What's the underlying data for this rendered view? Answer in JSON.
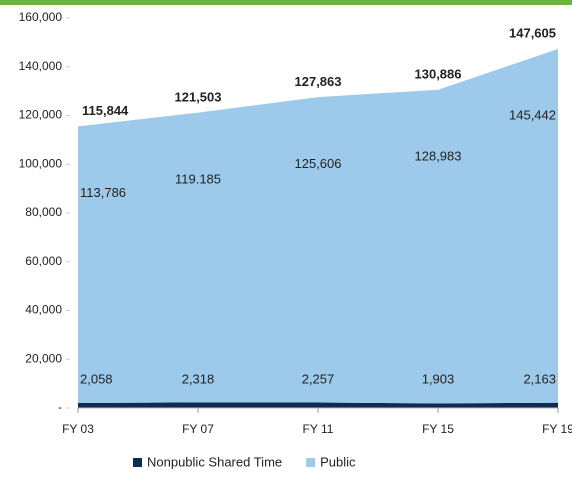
{
  "chart_data": {
    "type": "stacked_area",
    "categories": [
      "FY 03",
      "FY 07",
      "FY 11",
      "FY 15",
      "FY 19"
    ],
    "series": [
      {
        "name": "Nonpublic Shared Time",
        "color": "#0b2d4f",
        "values": [
          2058,
          2318,
          2257,
          1903,
          2163
        ],
        "value_labels": [
          "2,058",
          "2,318",
          "2,257",
          "1,903",
          "2,163"
        ]
      },
      {
        "name": "Public",
        "color": "#9dcaea",
        "values": [
          113786,
          119185,
          125606,
          128983,
          145442
        ],
        "value_labels": [
          "113,786",
          "119.185",
          "125,606",
          "128,983",
          "145,442"
        ]
      }
    ],
    "total_labels": [
      "115,844",
      "121,503",
      "127,863",
      "130,886",
      "147,605"
    ],
    "ylim": [
      0,
      160000
    ],
    "yticks": [
      {
        "value": 0,
        "label": "-"
      },
      {
        "value": 20000,
        "label": "20,000"
      },
      {
        "value": 40000,
        "label": "40,000"
      },
      {
        "value": 60000,
        "label": "60,000"
      },
      {
        "value": 80000,
        "label": "80,000"
      },
      {
        "value": 100000,
        "label": "100,000"
      },
      {
        "value": 120000,
        "label": "120,000"
      },
      {
        "value": 140000,
        "label": "140,000"
      },
      {
        "value": 160000,
        "label": "160,000"
      }
    ],
    "legend": "bottom"
  }
}
